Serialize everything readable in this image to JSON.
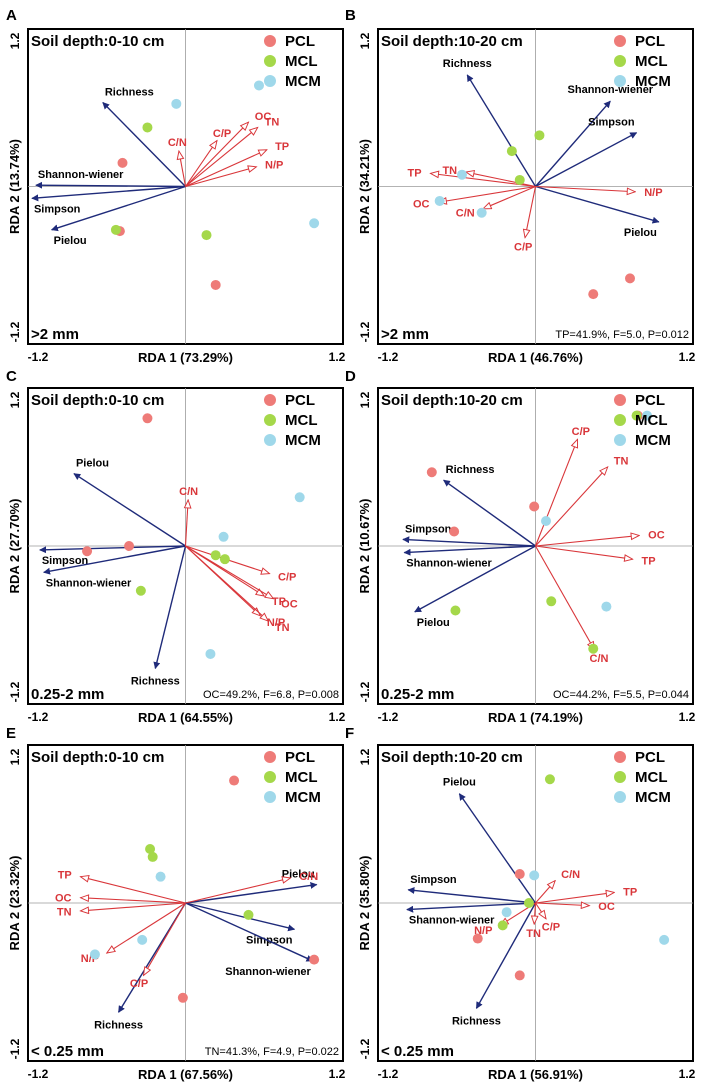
{
  "figure": {
    "colors": {
      "arrow_blue": "#1f2b7a",
      "arrow_red": "#d9363a",
      "PCL": "#ee7b78",
      "MCL": "#a5d84a",
      "MCM": "#9fd8ea",
      "axis": "#9a9a9a",
      "frame": "#000000"
    },
    "legend_labels": [
      "PCL",
      "MCL",
      "MCM"
    ]
  },
  "chart_data": [
    {
      "type": "scatter",
      "panel_label": "A",
      "title": "Soil depth:0-10 cm",
      "size_class": ">2 mm",
      "xlabel": "RDA 1 (73.29%)",
      "ylabel": "RDA 2 (13.74%)",
      "xlim": [
        -1.2,
        1.2
      ],
      "ylim": [
        -1.2,
        1.2
      ],
      "tick_labels": {
        "x_min": "-1.2",
        "x_max": "1.2",
        "y_min": "-1.2",
        "y_max": "1.2"
      },
      "stats": "",
      "legend_mcl_note": "",
      "species_arrows": [
        {
          "label": "Richness",
          "x": -0.63,
          "y": 0.64
        },
        {
          "label": "Shannon-wiener",
          "x": -1.14,
          "y": 0.01
        },
        {
          "label": "Simpson",
          "x": -1.17,
          "y": -0.09
        },
        {
          "label": "Pielou",
          "x": -1.02,
          "y": -0.33
        }
      ],
      "env_arrows": [
        {
          "label": "C/N",
          "x": -0.05,
          "y": 0.27
        },
        {
          "label": "C/P",
          "x": 0.24,
          "y": 0.35
        },
        {
          "label": "OC",
          "x": 0.48,
          "y": 0.49
        },
        {
          "label": "TN",
          "x": 0.55,
          "y": 0.45
        },
        {
          "label": "TP",
          "x": 0.62,
          "y": 0.28
        },
        {
          "label": "N/P",
          "x": 0.54,
          "y": 0.15
        }
      ],
      "points": {
        "PCL": [
          [
            -0.48,
            0.18
          ],
          [
            -0.5,
            -0.34
          ],
          [
            0.23,
            -0.75
          ]
        ],
        "MCL": [
          [
            -0.29,
            0.45
          ],
          [
            -0.53,
            -0.33
          ],
          [
            0.16,
            -0.37
          ]
        ],
        "MCM": [
          [
            -0.07,
            0.63
          ],
          [
            0.56,
            0.77
          ],
          [
            0.98,
            -0.28
          ]
        ]
      }
    },
    {
      "type": "scatter",
      "panel_label": "B",
      "title": "Soil depth:10-20 cm",
      "size_class": ">2 mm",
      "xlabel": "RDA 1 (46.76%)",
      "ylabel": "RDA 2 (34.21%)",
      "xlim": [
        -1.2,
        1.2
      ],
      "ylim": [
        -1.2,
        1.2
      ],
      "tick_labels": {
        "x_min": "-1.2",
        "x_max": "1.2",
        "y_min": "-1.2",
        "y_max": "1.2"
      },
      "stats": "TP=41.9%, F=5.0, P=0.012",
      "legend_mcl_note": "",
      "species_arrows": [
        {
          "label": "Richness",
          "x": -0.52,
          "y": 0.85
        },
        {
          "label": "Shannon-wiener",
          "x": 0.57,
          "y": 0.65
        },
        {
          "label": "Simpson",
          "x": 0.77,
          "y": 0.41
        },
        {
          "label": "Pielou",
          "x": 0.94,
          "y": -0.27
        }
      ],
      "env_arrows": [
        {
          "label": "TN",
          "x": -0.53,
          "y": 0.11
        },
        {
          "label": "TP",
          "x": -0.8,
          "y": 0.1
        },
        {
          "label": "OC",
          "x": -0.74,
          "y": -0.12
        },
        {
          "label": "C/N",
          "x": -0.4,
          "y": -0.17
        },
        {
          "label": "C/P",
          "x": -0.08,
          "y": -0.39
        },
        {
          "label": "N/P",
          "x": 0.76,
          "y": -0.04
        }
      ],
      "points": {
        "PCL": [
          [
            0.44,
            -0.82
          ],
          [
            0.72,
            -0.7
          ]
        ],
        "MCL": [
          [
            -0.18,
            0.27
          ],
          [
            0.03,
            0.39
          ],
          [
            -0.12,
            0.05
          ]
        ],
        "MCM": [
          [
            -0.56,
            0.09
          ],
          [
            -0.73,
            -0.11
          ],
          [
            -0.41,
            -0.2
          ]
        ]
      }
    },
    {
      "type": "scatter",
      "panel_label": "C",
      "title": "Soil depth:0-10 cm",
      "size_class": "0.25-2 mm",
      "xlabel": "RDA 1 (64.55%)",
      "ylabel": "RDA 2 (27.70%)",
      "xlim": [
        -1.2,
        1.2
      ],
      "ylim": [
        -1.2,
        1.2
      ],
      "tick_labels": {
        "x_min": "-1.2",
        "x_max": "1.2",
        "y_min": "-1.2",
        "y_max": "1.2"
      },
      "stats": "OC=49.2%, F=6.8, P=0.008",
      "legend_mcl_note": "",
      "species_arrows": [
        {
          "label": "Pielou",
          "x": -0.85,
          "y": 0.55
        },
        {
          "label": "Simpson",
          "x": -1.11,
          "y": -0.03
        },
        {
          "label": "Shannon-wiener",
          "x": -1.08,
          "y": -0.2
        },
        {
          "label": "Richness",
          "x": -0.23,
          "y": -0.93
        }
      ],
      "env_arrows": [
        {
          "label": "C/N",
          "x": 0.02,
          "y": 0.35
        },
        {
          "label": "C/P",
          "x": 0.64,
          "y": -0.21
        },
        {
          "label": "TP",
          "x": 0.6,
          "y": -0.38
        },
        {
          "label": "OC",
          "x": 0.67,
          "y": -0.4
        },
        {
          "label": "N/P",
          "x": 0.57,
          "y": -0.53
        },
        {
          "label": "TN",
          "x": 0.63,
          "y": -0.57
        }
      ],
      "points": {
        "PCL": [
          [
            -0.29,
            0.97
          ],
          [
            -0.75,
            -0.04
          ],
          [
            -0.43,
            0.0
          ]
        ],
        "MCL": [
          [
            -0.34,
            -0.34
          ],
          [
            0.23,
            -0.07
          ],
          [
            0.3,
            -0.1
          ]
        ],
        "MCM": [
          [
            0.29,
            0.07
          ],
          [
            0.87,
            0.37
          ],
          [
            0.19,
            -0.82
          ]
        ]
      }
    },
    {
      "type": "scatter",
      "panel_label": "D",
      "title": "Soil depth:10-20 cm",
      "size_class": "0.25-2 mm",
      "xlabel": "RDA 1 (74.19%)",
      "ylabel": "RDA 2 (10.67%)",
      "xlim": [
        -1.2,
        1.2
      ],
      "ylim": [
        -1.2,
        1.2
      ],
      "tick_labels": {
        "x_min": "-1.2",
        "x_max": "1.2",
        "y_min": "-1.2",
        "y_max": "1.2"
      },
      "stats": "OC=44.2%, F=5.5, P=0.044",
      "legend_mcl_note": "",
      "species_arrows": [
        {
          "label": "Richness",
          "x": -0.7,
          "y": 0.5
        },
        {
          "label": "Simpson",
          "x": -1.01,
          "y": 0.05
        },
        {
          "label": "Shannon-wiener",
          "x": -1.0,
          "y": -0.05
        },
        {
          "label": "Pielou",
          "x": -0.92,
          "y": -0.5
        }
      ],
      "env_arrows": [
        {
          "label": "C/P",
          "x": 0.32,
          "y": 0.81
        },
        {
          "label": "TN",
          "x": 0.55,
          "y": 0.6
        },
        {
          "label": "OC",
          "x": 0.79,
          "y": 0.08
        },
        {
          "label": "TP",
          "x": 0.74,
          "y": -0.1
        },
        {
          "label": "C/N",
          "x": 0.45,
          "y": -0.79
        }
      ],
      "points": {
        "PCL": [
          [
            -0.79,
            0.56
          ],
          [
            -0.62,
            0.11
          ],
          [
            -0.01,
            0.3
          ],
          [
            0.78,
            0.99
          ]
        ],
        "MCL": [
          [
            -0.61,
            -0.49
          ],
          [
            0.12,
            -0.42
          ],
          [
            0.44,
            -0.78
          ],
          [
            0.77,
            0.99
          ]
        ],
        "MCM": [
          [
            0.08,
            0.19
          ],
          [
            0.54,
            -0.46
          ],
          [
            0.85,
            0.99
          ]
        ]
      }
    },
    {
      "type": "scatter",
      "panel_label": "E",
      "title": "Soil depth:0-10 cm",
      "size_class": "< 0.25 mm",
      "xlabel": "RDA 1 (67.56%)",
      "ylabel": "RDA 2 (23.32%)",
      "xlim": [
        -1.2,
        1.2
      ],
      "ylim": [
        -1.2,
        1.2
      ],
      "tick_labels": {
        "x_min": "-1.2",
        "x_max": "1.2",
        "y_min": "-1.2",
        "y_max": "1.2"
      },
      "stats": "TN=41.3%, F=4.9, P=0.022",
      "legend_mcl_note": "",
      "species_arrows": [
        {
          "label": "Pielou",
          "x": 1.0,
          "y": 0.14
        },
        {
          "label": "Simpson",
          "x": 0.83,
          "y": -0.2
        },
        {
          "label": "Shannon-wiener",
          "x": 0.97,
          "y": -0.44
        },
        {
          "label": "Richness",
          "x": -0.51,
          "y": -0.83
        }
      ],
      "env_arrows": [
        {
          "label": "C/N",
          "x": 0.8,
          "y": 0.19
        },
        {
          "label": "TP",
          "x": -0.8,
          "y": 0.2
        },
        {
          "label": "OC",
          "x": -0.8,
          "y": 0.04
        },
        {
          "label": "TN",
          "x": -0.8,
          "y": -0.06
        },
        {
          "label": "N/P",
          "x": -0.6,
          "y": -0.38
        },
        {
          "label": "C/P",
          "x": -0.32,
          "y": -0.55
        }
      ],
      "points": {
        "PCL": [
          [
            0.37,
            0.93
          ],
          [
            0.98,
            -0.43
          ],
          [
            -0.02,
            -0.72
          ]
        ],
        "MCL": [
          [
            -0.27,
            0.41
          ],
          [
            -0.25,
            0.35
          ],
          [
            0.48,
            -0.09
          ]
        ],
        "MCM": [
          [
            -0.19,
            0.2
          ],
          [
            -0.33,
            -0.28
          ],
          [
            -0.69,
            -0.39
          ]
        ]
      }
    },
    {
      "type": "scatter",
      "panel_label": "F",
      "title": "Soil depth:10-20 cm",
      "size_class": "< 0.25 mm",
      "xlabel": "RDA 1 (56.91%)",
      "ylabel": "RDA 2 (35.80%)",
      "xlim": [
        -1.2,
        1.2
      ],
      "ylim": [
        -1.2,
        1.2
      ],
      "tick_labels": {
        "x_min": "-1.2",
        "x_max": "1.2",
        "y_min": "-1.2",
        "y_max": "1.2"
      },
      "stats": "",
      "legend_mcl_note": "",
      "species_arrows": [
        {
          "label": "Pielou",
          "x": -0.58,
          "y": 0.83
        },
        {
          "label": "Simpson",
          "x": -0.97,
          "y": 0.1
        },
        {
          "label": "Shannon-wiener",
          "x": -0.98,
          "y": -0.05
        },
        {
          "label": "Richness",
          "x": -0.45,
          "y": -0.8
        }
      ],
      "env_arrows": [
        {
          "label": "C/N",
          "x": 0.15,
          "y": 0.17
        },
        {
          "label": "TP",
          "x": 0.6,
          "y": 0.08
        },
        {
          "label": "OC",
          "x": 0.41,
          "y": -0.02
        },
        {
          "label": "C/P",
          "x": 0.08,
          "y": -0.12
        },
        {
          "label": "TN",
          "x": -0.01,
          "y": -0.16
        },
        {
          "label": "N/P",
          "x": -0.27,
          "y": -0.17
        }
      ],
      "points": {
        "PCL": [
          [
            -0.12,
            0.22
          ],
          [
            -0.44,
            -0.27
          ],
          [
            -0.12,
            -0.55
          ]
        ],
        "MCL": [
          [
            0.11,
            0.94
          ],
          [
            -0.05,
            0.0
          ],
          [
            -0.25,
            -0.17
          ]
        ],
        "MCM": [
          [
            -0.01,
            0.21
          ],
          [
            -0.22,
            -0.07
          ],
          [
            0.98,
            -0.28
          ]
        ]
      }
    }
  ]
}
